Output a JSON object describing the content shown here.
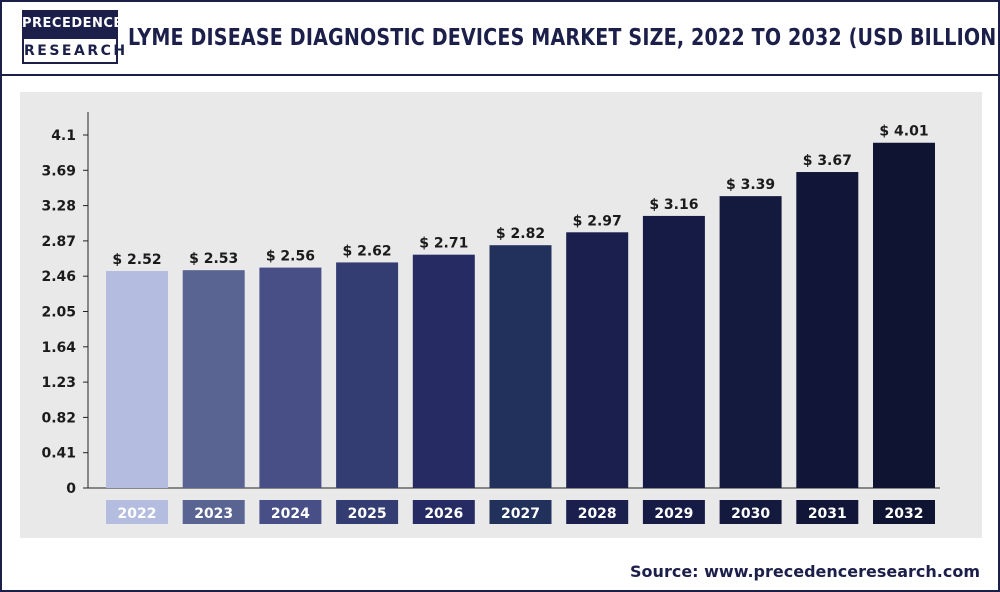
{
  "logo": {
    "line1": "PRECEDENCE",
    "line2": "RESEARCH"
  },
  "header": {
    "title": "LYME DISEASE DIAGNOSTIC DEVICES MARKET SIZE, 2022 TO 2032 (USD BILLION)"
  },
  "source": "Source: www.precedenceresearch.com",
  "chart_data": {
    "type": "bar",
    "title": "LYME DISEASE DIAGNOSTIC DEVICES MARKET SIZE, 2022 TO 2032 (USD BILLION)",
    "categories": [
      "2022",
      "2023",
      "2024",
      "2025",
      "2026",
      "2027",
      "2028",
      "2029",
      "2030",
      "2031",
      "2032"
    ],
    "values": [
      2.52,
      2.53,
      2.56,
      2.62,
      2.71,
      2.82,
      2.97,
      3.16,
      3.39,
      3.67,
      4.01
    ],
    "data_labels": [
      "$ 2.52",
      "$ 2.53",
      "$ 2.56",
      "$ 2.62",
      "$ 2.71",
      "$ 2.82",
      "$ 2.97",
      "$ 3.16",
      "$ 3.39",
      "$ 3.67",
      "$ 4.01"
    ],
    "y_ticks": [
      0,
      0.41,
      0.82,
      1.23,
      1.64,
      2.05,
      2.46,
      2.87,
      3.28,
      3.69,
      4.1
    ],
    "ylim": [
      0,
      4.1
    ],
    "xlabel": "",
    "ylabel": "",
    "grid": false,
    "legend": "none",
    "bar_colors": [
      "#b4bde0",
      "#5a6493",
      "#474f86",
      "#343d72",
      "#262c63",
      "#22305c",
      "#1a1f4e",
      "#161b46",
      "#141a3e",
      "#111638",
      "#0f1433"
    ],
    "category_label_colors": [
      "#b4bde0",
      "#5a6493",
      "#474f86",
      "#343d72",
      "#262c63",
      "#22305c",
      "#1a1f4e",
      "#161b46",
      "#141a3e",
      "#111638",
      "#0f1433"
    ]
  }
}
